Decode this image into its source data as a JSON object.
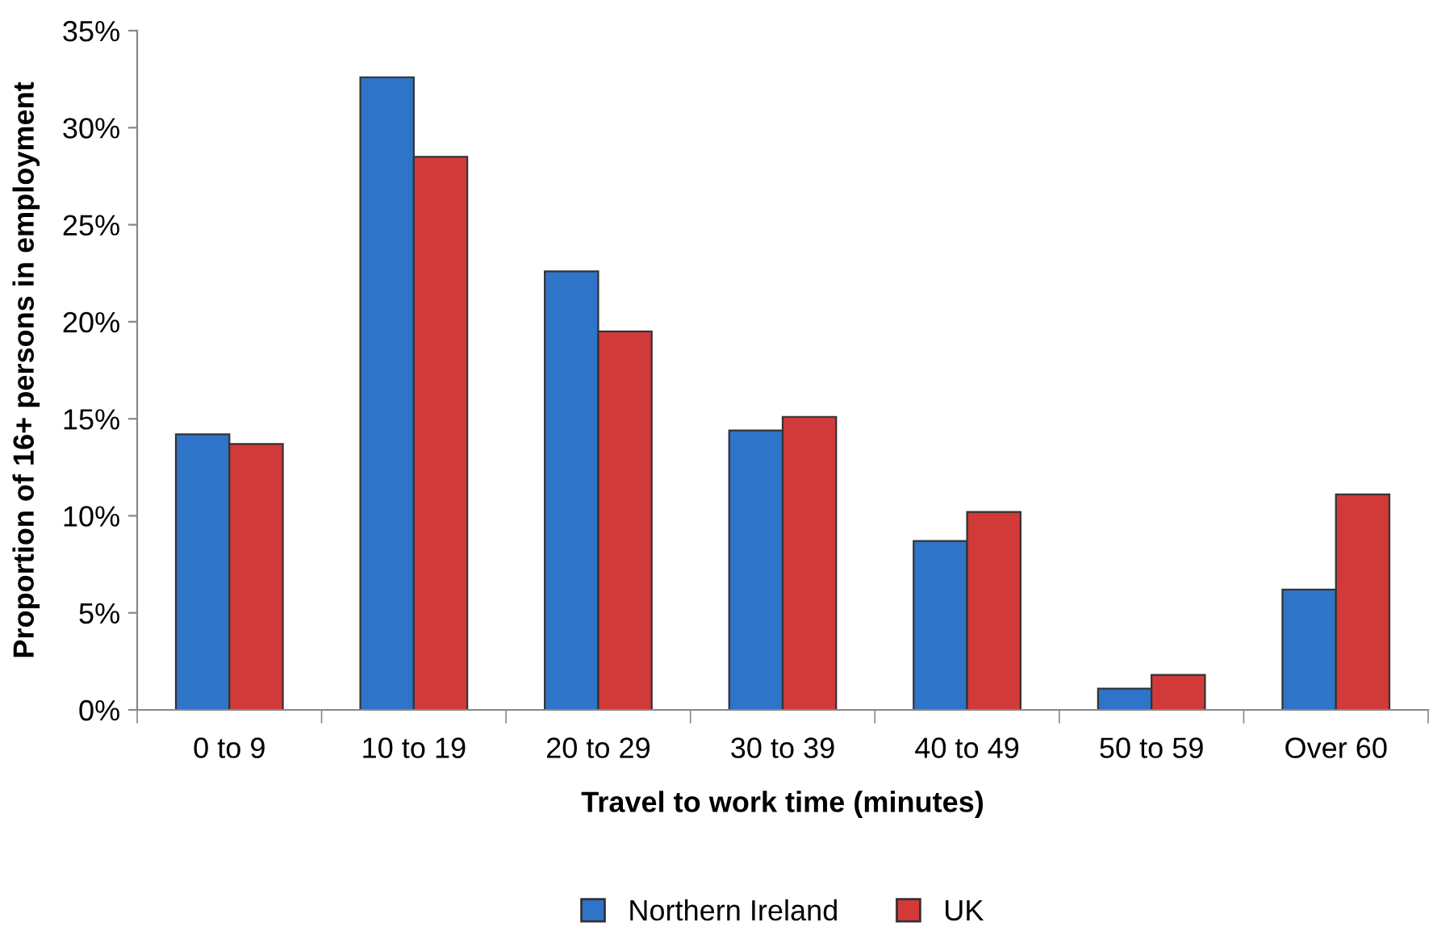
{
  "chart_data": {
    "type": "bar",
    "xlabel": "Travel to work time (minutes)",
    "ylabel": "Proportion of 16+ persons in employment",
    "categories": [
      "0 to 9",
      "10 to 19",
      "20 to 29",
      "30 to 39",
      "40 to 49",
      "50 to 59",
      "Over 60"
    ],
    "series": [
      {
        "name": "Northern Ireland",
        "color": "#2e74c8",
        "values": [
          14.2,
          32.6,
          22.6,
          14.4,
          8.7,
          1.1,
          6.2
        ]
      },
      {
        "name": "UK",
        "color": "#d23a3a",
        "values": [
          13.7,
          28.5,
          19.5,
          15.1,
          10.2,
          1.8,
          11.1
        ]
      }
    ],
    "ylim": [
      0,
      35
    ],
    "yticks": [
      {
        "value": 0,
        "label": "0%"
      },
      {
        "value": 5,
        "label": "5%"
      },
      {
        "value": 10,
        "label": "10%"
      },
      {
        "value": 15,
        "label": "15%"
      },
      {
        "value": 20,
        "label": "20%"
      },
      {
        "value": 25,
        "label": "25%"
      },
      {
        "value": 30,
        "label": "30%"
      },
      {
        "value": 35,
        "label": "35%"
      }
    ],
    "grid": false,
    "legend": "bottom"
  }
}
